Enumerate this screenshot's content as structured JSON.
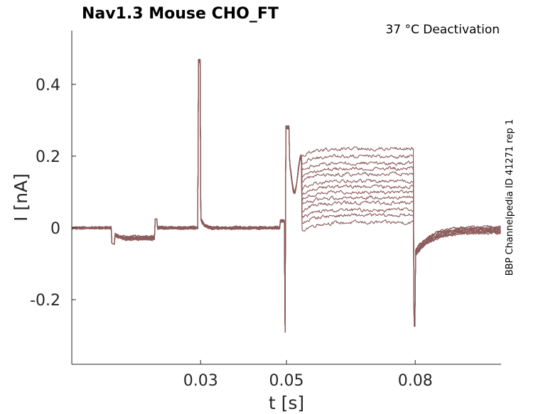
{
  "chart_data": {
    "type": "line",
    "title": "Nav1.3  Mouse  CHO_FT",
    "subtitle": "37 °C  Deactivation",
    "side_label": "BBP Channelpedia ID 41271 rep 1",
    "xlabel": "t [s]",
    "ylabel": "I [nA]",
    "xlim": [
      0,
      0.1
    ],
    "ylim": [
      -0.38,
      0.55
    ],
    "x_ticks": [
      0.03,
      0.05,
      0.08
    ],
    "x_tick_labels": [
      "0.03",
      "0.05",
      "0.08"
    ],
    "y_ticks": [
      0.4,
      0.2,
      0,
      -0.2
    ],
    "y_tick_labels": [
      "0.4",
      "0.2",
      "0",
      "-0.2"
    ],
    "grid": false,
    "legend": "none",
    "color": "#8b5a5a",
    "sweep_count": 13,
    "protocol": {
      "baseline_end": 0.0093,
      "step1_end": 0.0193,
      "spike1_time": 0.0295,
      "spike1_peak": 0.47,
      "step2_start": 0.0495,
      "step2_peak": 0.285,
      "step2_trough": -0.295,
      "step2_end": 0.0797,
      "tail_trough": -0.275,
      "step2_plateaus": [
        0.015,
        0.035,
        0.05,
        0.07,
        0.085,
        0.1,
        0.115,
        0.13,
        0.15,
        0.165,
        0.18,
        0.2,
        0.22
      ]
    }
  }
}
